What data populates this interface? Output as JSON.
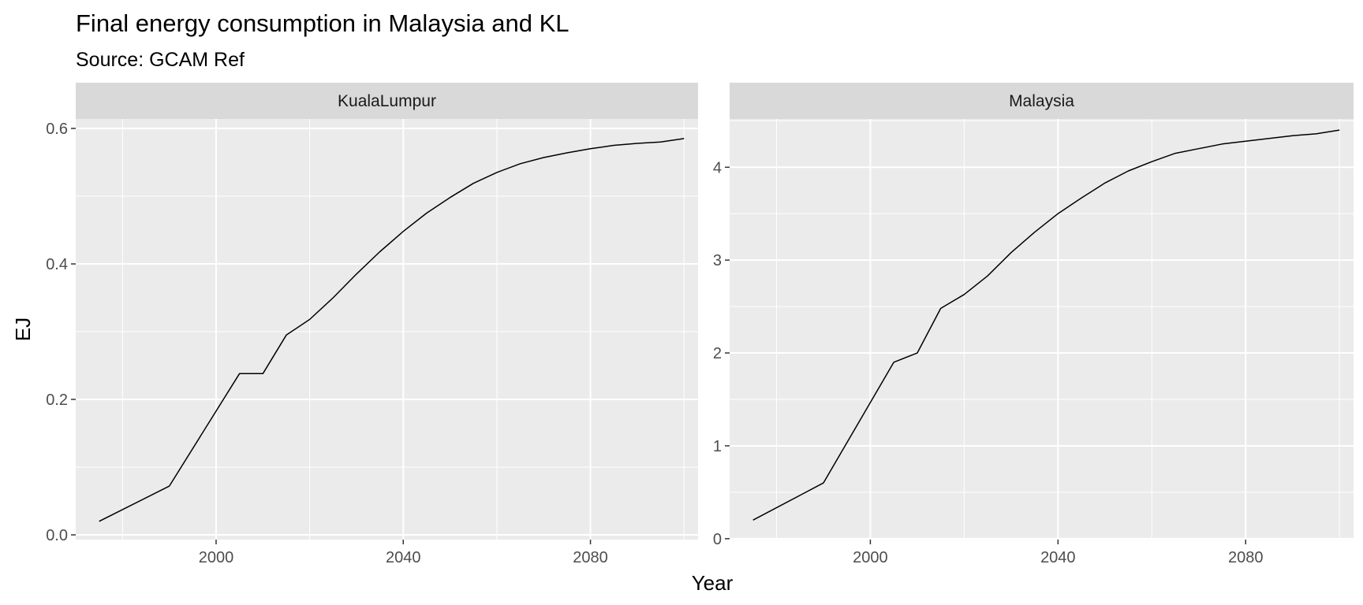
{
  "chart_data": {
    "type": "line",
    "title": "Final energy consumption in Malaysia and KL",
    "subtitle": "Source: GCAM Ref",
    "xlabel": "Year",
    "ylabel": "EJ",
    "grid": true,
    "legend": "none",
    "line_color": "#000000",
    "panel_background": "#EBEBEB",
    "strip_background": "#D9D9D9",
    "x_ticks": [
      2000,
      2040,
      2080
    ],
    "facets": [
      {
        "label": "KualaLumpur",
        "xlim": [
          1970,
          2103
        ],
        "ylim": [
          -0.007,
          0.614
        ],
        "y_ticks": [
          0.0,
          0.2,
          0.4,
          0.6
        ],
        "y_tick_labels": [
          "0.0",
          "0.2",
          "0.4",
          "0.6"
        ],
        "series": [
          {
            "x": [
              1975,
              1990,
              2005,
              2010,
              2015,
              2020,
              2025,
              2030,
              2035,
              2040,
              2045,
              2050,
              2055,
              2060,
              2065,
              2070,
              2075,
              2080,
              2085,
              2090,
              2095,
              2100
            ],
            "y": [
              0.02,
              0.072,
              0.238,
              0.238,
              0.295,
              0.318,
              0.35,
              0.385,
              0.418,
              0.448,
              0.475,
              0.498,
              0.519,
              0.535,
              0.548,
              0.557,
              0.564,
              0.57,
              0.575,
              0.578,
              0.58,
              0.585
            ]
          }
        ]
      },
      {
        "label": "Malaysia",
        "xlim": [
          1970,
          2103
        ],
        "ylim": [
          -0.01,
          4.52
        ],
        "y_ticks": [
          0,
          1,
          2,
          3,
          4
        ],
        "y_tick_labels": [
          "0",
          "1",
          "2",
          "3",
          "4"
        ],
        "series": [
          {
            "x": [
              1975,
              1990,
              2005,
              2010,
              2015,
              2020,
              2025,
              2030,
              2035,
              2040,
              2045,
              2050,
              2055,
              2060,
              2065,
              2070,
              2075,
              2080,
              2085,
              2090,
              2095,
              2100
            ],
            "y": [
              0.2,
              0.6,
              1.9,
              2.0,
              2.48,
              2.63,
              2.83,
              3.08,
              3.3,
              3.5,
              3.67,
              3.83,
              3.96,
              4.06,
              4.15,
              4.2,
              4.25,
              4.28,
              4.31,
              4.34,
              4.36,
              4.4
            ]
          }
        ]
      }
    ]
  }
}
